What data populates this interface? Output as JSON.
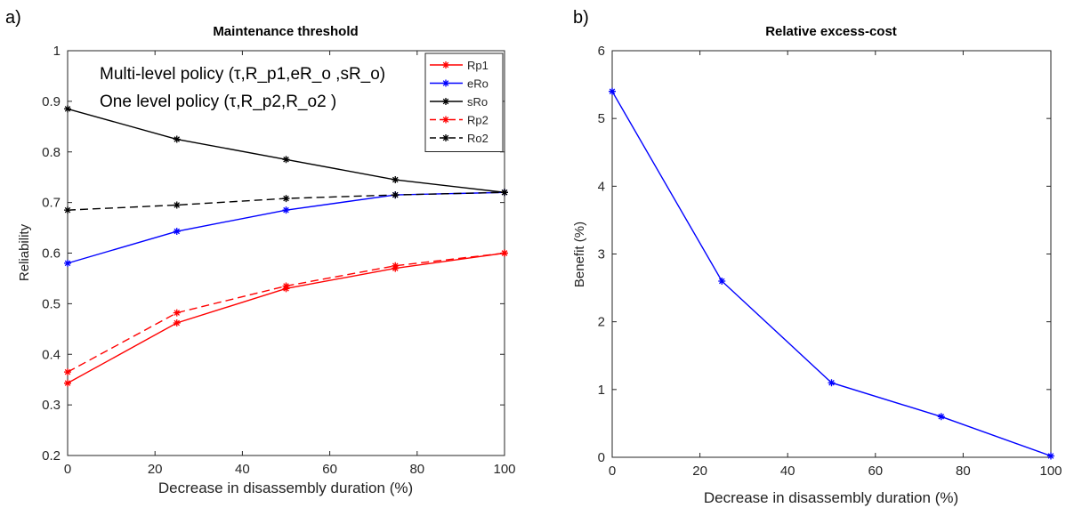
{
  "panels": [
    {
      "panel_label": "a)",
      "annotations": [
        "Multi-level policy (τ,R_p1,eR_o ,sR_o)",
        "One level policy (τ,R_p2,R_o2 )"
      ]
    },
    {
      "panel_label": "b)"
    }
  ],
  "chart_data": [
    {
      "type": "line",
      "title": "Maintenance threshold",
      "xlabel": "Decrease in disassembly duration (%)",
      "ylabel": "Reliability",
      "xlim": [
        0,
        100
      ],
      "ylim": [
        0.2,
        1
      ],
      "xticks": [
        "0",
        "20",
        "40",
        "60",
        "80",
        "100"
      ],
      "yticks": [
        "0.2",
        "0.3",
        "0.4",
        "0.5",
        "0.6",
        "0.7",
        "0.8",
        "0.9",
        "1"
      ],
      "x": [
        0,
        25,
        50,
        75,
        100
      ],
      "grid": false,
      "legend_position": "top-right",
      "series": [
        {
          "name": "Rp1",
          "values": [
            0.343,
            0.462,
            0.53,
            0.57,
            0.6
          ],
          "color": "#ff0000",
          "dash": "solid",
          "marker": "asterisk"
        },
        {
          "name": "eRo",
          "values": [
            0.58,
            0.643,
            0.685,
            0.715,
            0.72
          ],
          "color": "#0000ff",
          "dash": "solid",
          "marker": "asterisk"
        },
        {
          "name": "sRo",
          "values": [
            0.885,
            0.825,
            0.785,
            0.745,
            0.72
          ],
          "color": "#000000",
          "dash": "solid",
          "marker": "asterisk"
        },
        {
          "name": "Rp2",
          "values": [
            0.365,
            0.482,
            0.535,
            0.575,
            0.6
          ],
          "color": "#ff0000",
          "dash": "dashed",
          "marker": "asterisk"
        },
        {
          "name": "Ro2",
          "values": [
            0.685,
            0.695,
            0.708,
            0.715,
            0.72
          ],
          "color": "#000000",
          "dash": "dashed",
          "marker": "asterisk"
        }
      ]
    },
    {
      "type": "line",
      "title": "Relative excess-cost",
      "xlabel": "Decrease in disassembly duration (%)",
      "ylabel": "Benefit (%)",
      "xlim": [
        0,
        100
      ],
      "ylim": [
        0,
        6
      ],
      "xticks": [
        "0",
        "20",
        "40",
        "60",
        "80",
        "100"
      ],
      "yticks": [
        "0",
        "1",
        "2",
        "3",
        "4",
        "5",
        "6"
      ],
      "x": [
        0,
        25,
        50,
        75,
        100
      ],
      "grid": false,
      "series": [
        {
          "values": [
            5.4,
            2.6,
            1.1,
            0.6,
            0.02
          ],
          "color": "#0000ff",
          "dash": "solid",
          "marker": "asterisk"
        }
      ]
    }
  ]
}
